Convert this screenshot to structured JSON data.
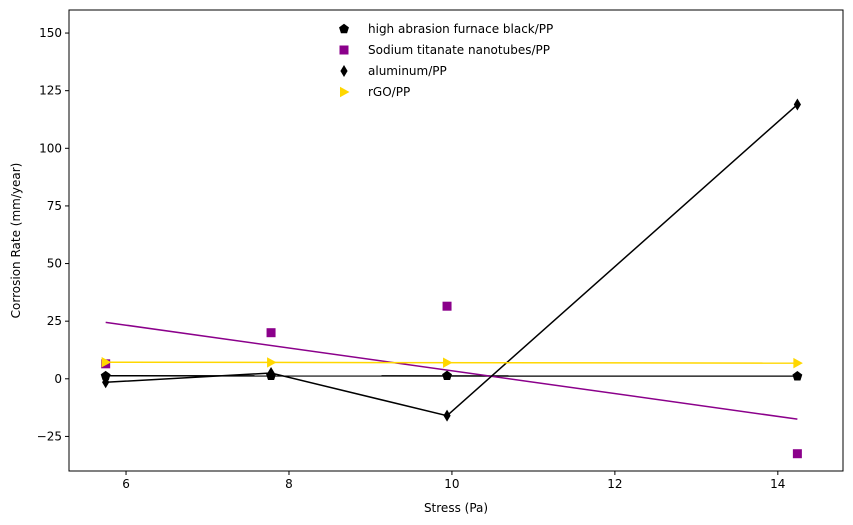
{
  "chart_data": {
    "type": "scatter",
    "title": "",
    "xlabel": "Stress (Pa)",
    "ylabel": "Corrosion Rate (mm/year)",
    "xlim": [
      5.3,
      14.8
    ],
    "ylim": [
      -40,
      160
    ],
    "xticks": [
      6,
      8,
      10,
      12,
      14
    ],
    "yticks": [
      -25,
      0,
      25,
      50,
      75,
      100,
      125,
      150
    ],
    "grid": false,
    "legend_position": "top-center",
    "series": [
      {
        "name": "high abrasion furnace black/PP",
        "marker": "pentagon",
        "color": "#000000",
        "x": [
          5.75,
          7.78,
          9.94,
          14.24
        ],
        "y": [
          1.2,
          1.3,
          1.3,
          1.1
        ],
        "fit_line": {
          "x": [
            5.75,
            14.24
          ],
          "y": [
            1.3,
            1.2
          ],
          "color": "#000000"
        }
      },
      {
        "name": "Sodium titanate nanotubes/PP",
        "marker": "square",
        "color": "#8b008b",
        "x": [
          5.75,
          7.78,
          9.94,
          14.24
        ],
        "y": [
          6.5,
          20.0,
          31.5,
          -32.5
        ],
        "fit_line": {
          "x": [
            5.75,
            14.24
          ],
          "y": [
            24.5,
            -17.5
          ],
          "color": "#8b008b"
        }
      },
      {
        "name": "aluminum/PP",
        "marker": "thin_diamond",
        "color": "#000000",
        "x": [
          5.75,
          7.78,
          9.94,
          14.24
        ],
        "y": [
          -1.5,
          2.5,
          -16.0,
          119.0
        ],
        "connect": true
      },
      {
        "name": "rGO/PP",
        "marker": "triangle-right",
        "color": "#ffd700",
        "x": [
          5.75,
          7.78,
          9.94,
          14.24
        ],
        "y": [
          7.2,
          7.1,
          7.0,
          6.8
        ],
        "fit_line": {
          "x": [
            5.75,
            14.24
          ],
          "y": [
            7.2,
            6.8
          ],
          "color": "#ffd700"
        }
      }
    ]
  }
}
